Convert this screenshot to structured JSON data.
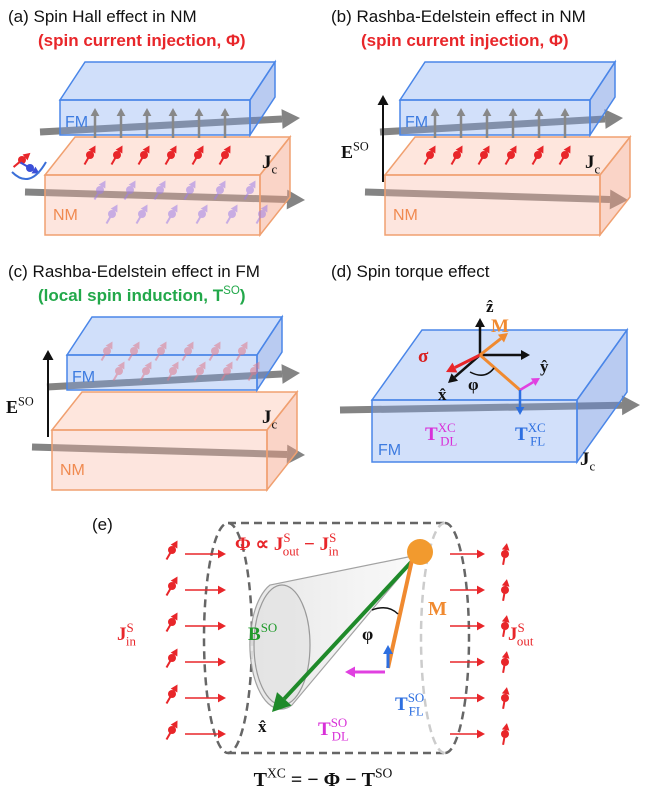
{
  "a": {
    "title": "(a) Spin Hall effect in NM",
    "subtitle": "(spin current injection, Φ)",
    "fm": "FM",
    "nm": "NM",
    "current": [
      {
        "t": "J",
        "sub": "c"
      }
    ]
  },
  "b": {
    "title": "(b) Rashba-Edelstein effect in NM",
    "subtitle": "(spin current injection, Φ)",
    "field": [
      {
        "t": "E",
        "sup": "SO"
      }
    ],
    "fm": "FM",
    "nm": "NM",
    "current": [
      {
        "t": "J",
        "sub": "c"
      }
    ]
  },
  "c": {
    "title": "(c) Rashba-Edelstein effect in FM",
    "subtitle": [
      {
        "t": "(local spin induction, "
      },
      {
        "t": "T",
        "sup": "SO"
      },
      {
        "t": ")"
      }
    ],
    "field": [
      {
        "t": "E",
        "sup": "SO"
      }
    ],
    "fm": "FM",
    "nm": "NM",
    "current": [
      {
        "t": "J",
        "sub": "c"
      }
    ]
  },
  "d": {
    "title": "(d) Spin torque effect",
    "z": "ẑ",
    "y": "ŷ",
    "x": "x̂",
    "m": "M",
    "sigma": "σ",
    "phi": "φ",
    "t_dl": [
      {
        "t": "T",
        "sup": "XC",
        "sub": "DL"
      }
    ],
    "t_fl": [
      {
        "t": "T",
        "sup": "XC",
        "sub": "FL"
      }
    ],
    "fm": "FM",
    "current": [
      {
        "t": "J",
        "sub": "c"
      }
    ]
  },
  "e": {
    "label": "(e)",
    "flux": [
      {
        "t": "Φ ∝ "
      },
      {
        "t": "J",
        "sup": "S",
        "sub": "out"
      },
      {
        "t": " − "
      },
      {
        "t": "J",
        "sup": "S",
        "sub": "in"
      }
    ],
    "m": "M",
    "phi": "φ",
    "b_so": [
      {
        "t": "B",
        "sup": "SO"
      }
    ],
    "t_fl": [
      {
        "t": "T",
        "sup": "SO",
        "sub": "FL"
      }
    ],
    "x": "x̂",
    "t_dl": [
      {
        "t": "T",
        "sup": "SO",
        "sub": "DL"
      }
    ],
    "j_in": [
      {
        "t": "J",
        "sup": "S",
        "sub": "in"
      }
    ],
    "j_out": [
      {
        "t": "J",
        "sup": "S",
        "sub": "out"
      }
    ]
  },
  "equation": [
    {
      "t": "T",
      "sup": "XC"
    },
    {
      "t": " = − Φ − "
    },
    {
      "t": "T",
      "sup": "SO"
    }
  ]
}
